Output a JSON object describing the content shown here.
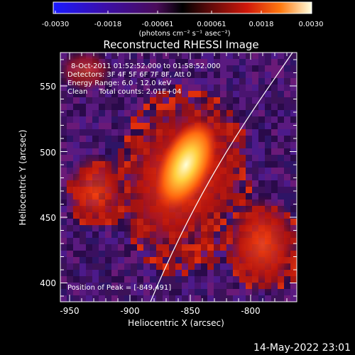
{
  "colorbar": {
    "ticks": [
      "-0.0030",
      "-0.0018",
      "-0.00061",
      "0.00061",
      "0.0018",
      "0.0030"
    ],
    "units": "(photons cm⁻² s⁻¹ asec⁻²)"
  },
  "plot": {
    "title": "Reconstructed RHESSI Image",
    "info": [
      "8-Oct-2011 01:52:52.000 to 01:58:52.000",
      "Detectors: 3F 4F 5F 6F 7F 8F, Att 0",
      "Energy Range: 6.0 - 12.0 keV",
      "Clean     Total counts: 2.01E+04"
    ],
    "peak_text": "Position of Peak = [-849,491]",
    "xlabel": "Heliocentric X (arcsec)",
    "ylabel": "Heliocentric Y (arcsec)",
    "xticks": [
      "-950",
      "-900",
      "-850",
      "-800"
    ],
    "yticks": [
      "550",
      "500",
      "450",
      "400"
    ],
    "xlim": [
      -960,
      -785
    ],
    "ylim": [
      385,
      575
    ]
  },
  "footer": {
    "timestamp": "14-May-2022 23:01"
  },
  "colors": {
    "background": "#000000",
    "limb": "#ffffff"
  }
}
